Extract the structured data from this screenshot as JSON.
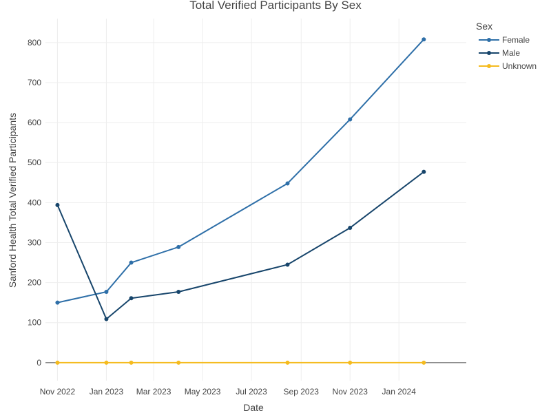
{
  "chart_data": {
    "type": "line",
    "title": "Total Verified Participants By Sex",
    "xlabel": "Date",
    "ylabel": "Sanford Health Total Verified Participants",
    "legend_title": "Sex",
    "legend_position": "top-right",
    "grid": true,
    "x_range": [
      "2022-10-17",
      "2024-03-25"
    ],
    "ylim": [
      -45,
      860
    ],
    "x_ticks": [
      {
        "date": "2022-11-01",
        "label": "Nov 2022"
      },
      {
        "date": "2023-01-01",
        "label": "Jan 2023"
      },
      {
        "date": "2023-03-01",
        "label": "Mar 2023"
      },
      {
        "date": "2023-05-01",
        "label": "May 2023"
      },
      {
        "date": "2023-07-01",
        "label": "Jul 2023"
      },
      {
        "date": "2023-09-01",
        "label": "Sep 2023"
      },
      {
        "date": "2023-11-01",
        "label": "Nov 2023"
      },
      {
        "date": "2024-01-01",
        "label": "Jan 2024"
      }
    ],
    "y_ticks": [
      0,
      100,
      200,
      300,
      400,
      500,
      600,
      700,
      800
    ],
    "x": [
      "2022-11-01",
      "2023-01-01",
      "2023-02-01",
      "2023-04-01",
      "2023-08-15",
      "2023-11-01",
      "2024-02-01"
    ],
    "series": [
      {
        "name": "Female",
        "color": "#2e6fa8",
        "values": [
          150,
          177,
          250,
          289,
          448,
          608,
          808
        ]
      },
      {
        "name": "Male",
        "color": "#17456b",
        "values": [
          394,
          109,
          161,
          177,
          245,
          337,
          477
        ]
      },
      {
        "name": "Unknown",
        "color": "#f5bb1e",
        "values": [
          0,
          0,
          0,
          0,
          0,
          0,
          0
        ]
      }
    ]
  }
}
